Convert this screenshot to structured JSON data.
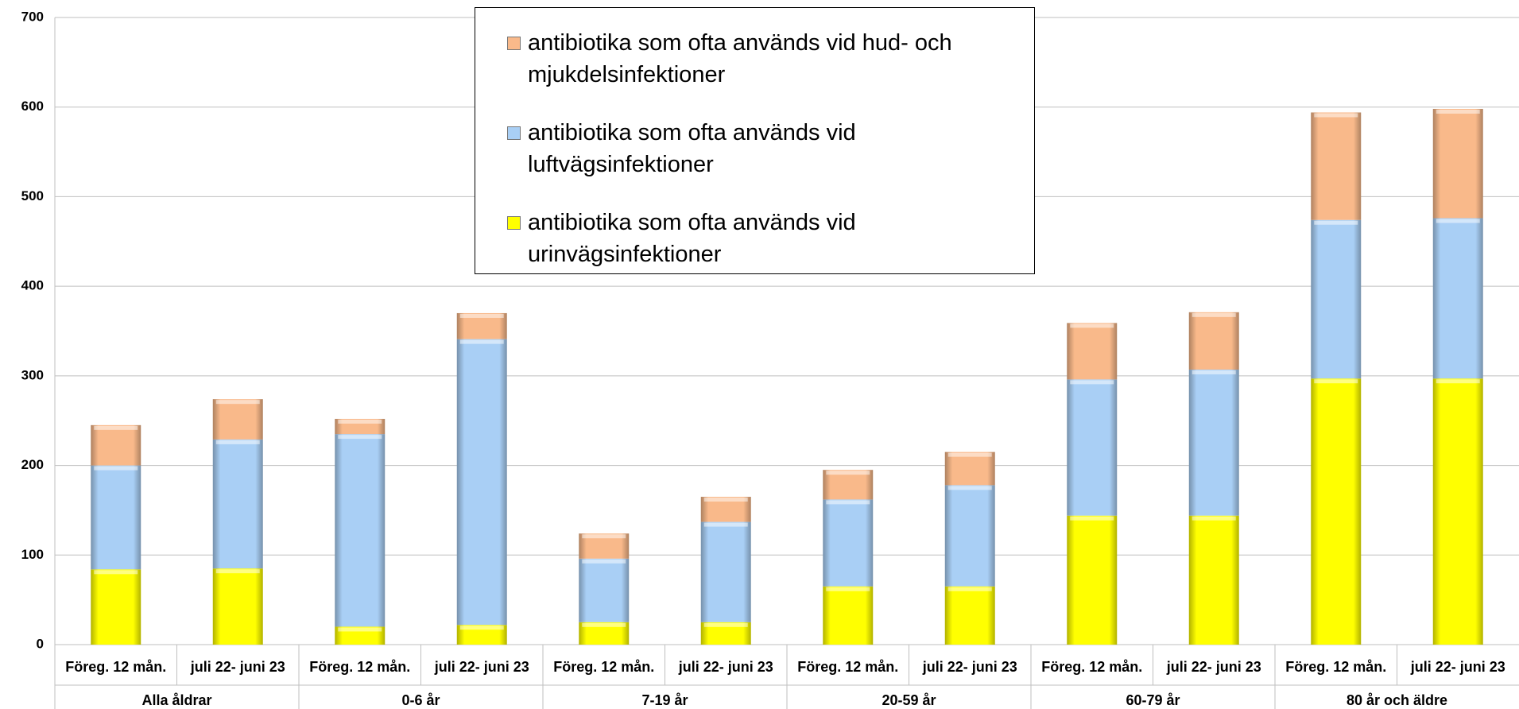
{
  "chart_data": {
    "type": "stacked_bar",
    "categories": [
      "Föreg. 12 mån.",
      "juli 22- juni 23",
      "Föreg. 12 mån.",
      "juli 22- juni 23",
      "Föreg. 12 mån.",
      "juli 22- juni 23",
      "Föreg. 12 mån.",
      "juli 22- juni 23",
      "Föreg. 12 mån.",
      "juli 22- juni 23",
      "Föreg. 12 mån.",
      "juli 22- juni 23"
    ],
    "groups": [
      "Alla åldrar",
      "0-6 år",
      "7-19 år",
      "20-59 år",
      "60-79 år",
      "80 år och äldre"
    ],
    "series": [
      {
        "name": "antibiotika som ofta används vid urinvägsinfektioner",
        "color": "#ffff00",
        "values": [
          84,
          85,
          20,
          22,
          25,
          25,
          65,
          65,
          144,
          144,
          297,
          297
        ]
      },
      {
        "name": "antibiotika som ofta används vid luftvägsinfektioner",
        "color": "#a9cff5",
        "values": [
          116,
          144,
          215,
          319,
          71,
          112,
          97,
          113,
          152,
          163,
          177,
          179
        ]
      },
      {
        "name": "antibiotika som ofta används vid hud- och mjukdelsinfektioner",
        "color": "#f9b98a",
        "values": [
          45,
          45,
          17,
          29,
          28,
          28,
          33,
          37,
          63,
          64,
          120,
          122
        ]
      }
    ],
    "ylim": [
      0,
      700
    ],
    "yticks": [
      0,
      100,
      200,
      300,
      400,
      500,
      600,
      700
    ],
    "grid": true
  }
}
